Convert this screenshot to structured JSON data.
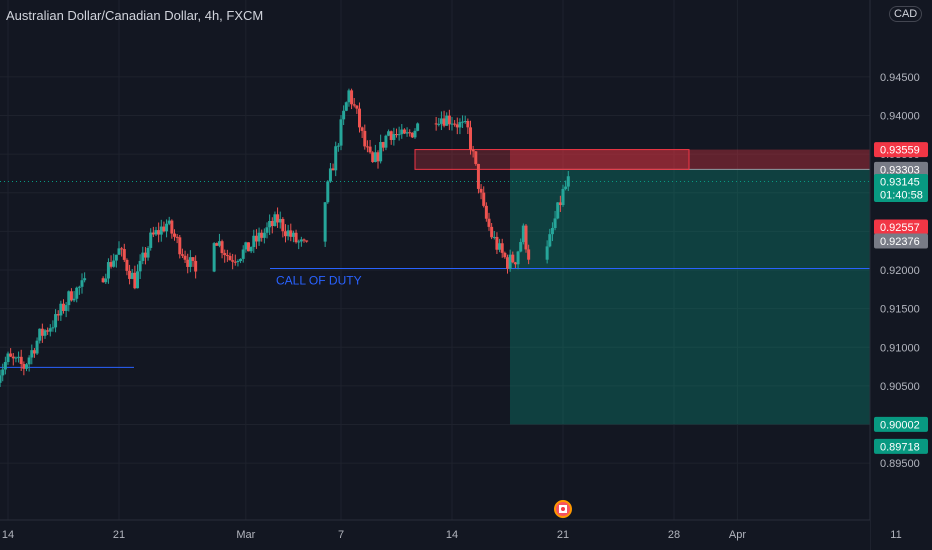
{
  "header": {
    "title": "Australian Dollar/Canadian Dollar, 4h, FXCM",
    "currency": "CAD"
  },
  "chart_data": {
    "type": "candlestick",
    "title": "Australian Dollar/Canadian Dollar, 4h, FXCM",
    "ylim": [
      0.8925,
      0.951
    ],
    "y_ticks": [
      "0.94500",
      "0.94000",
      "0.93500",
      "0.93000",
      "0.92500",
      "0.92000",
      "0.91500",
      "0.91000",
      "0.90500",
      "0.90000",
      "0.89500"
    ],
    "x_ticks": [
      "14",
      "21",
      "Mar",
      "7",
      "14",
      "21",
      "28",
      "Apr",
      "11"
    ],
    "close_path": [
      [
        "Feb 14 00:00",
        0.9085
      ],
      [
        "Feb 15 00:00",
        0.9075
      ],
      [
        "Feb 16 00:00",
        0.9115
      ],
      [
        "Feb 17 00:00",
        0.9135
      ],
      [
        "Feb 18 00:00",
        0.917
      ],
      [
        "Feb 20 00:00",
        0.9195
      ],
      [
        "Feb 21 00:00",
        0.9225
      ],
      [
        "Feb 22 00:00",
        0.9185
      ],
      [
        "Feb 23 00:00",
        0.924
      ],
      [
        "Feb 24 00:00",
        0.926
      ],
      [
        "Feb 25 00:00",
        0.9225
      ],
      [
        "Feb 26 00:00",
        0.919
      ],
      [
        "Feb 27 00:00",
        0.9245
      ],
      [
        "Feb 28 00:00",
        0.9215
      ],
      [
        "Mar 1 00:00",
        0.9225
      ],
      [
        "Mar 2 00:00",
        0.9245
      ],
      [
        "Mar 3 00:00",
        0.9265
      ],
      [
        "Mar 4 00:00",
        0.924
      ],
      [
        "Mar 5 00:00",
        0.9225
      ],
      [
        "Mar 6 00:00",
        0.929
      ],
      [
        "Mar 7 00:00",
        0.9385
      ],
      [
        "Mar 7 12:00",
        0.943
      ],
      [
        "Mar 8 00:00",
        0.94
      ],
      [
        "Mar 8 12:00",
        0.936
      ],
      [
        "Mar 9 00:00",
        0.9335
      ],
      [
        "Mar 10 00:00",
        0.938
      ],
      [
        "Mar 11 00:00",
        0.937
      ],
      [
        "Mar 12 00:00",
        0.939
      ],
      [
        "Mar 13 00:00",
        0.94
      ],
      [
        "Mar 14 00:00",
        0.9395
      ],
      [
        "Mar 15 00:00",
        0.938
      ],
      [
        "Mar 15 12:00",
        0.933
      ],
      [
        "Mar 16 00:00",
        0.9275
      ],
      [
        "Mar 16 12:00",
        0.9245
      ],
      [
        "Mar 17 00:00",
        0.9225
      ],
      [
        "Mar 17 12:00",
        0.921
      ],
      [
        "Mar 18 00:00",
        0.9215
      ],
      [
        "Mar 18 12:00",
        0.925
      ],
      [
        "Mar 19 00:00",
        0.9205
      ],
      [
        "Mar 19 08:00",
        0.918
      ],
      [
        "Mar 19 16:00",
        0.9195
      ],
      [
        "Mar 20 00:00",
        0.9225
      ],
      [
        "Mar 20 12:00",
        0.9265
      ],
      [
        "Mar 21 00:00",
        0.93
      ],
      [
        "Mar 21 08:00",
        0.93145
      ]
    ],
    "price_tags": [
      {
        "value": "0.93559",
        "color": "#f23645"
      },
      {
        "value": "0.93303",
        "color": "#787b86"
      },
      {
        "value": "0.93145",
        "color": "#089981",
        "sub": "01:40:58"
      },
      {
        "value": "0.92557",
        "color": "#f23645"
      },
      {
        "value": "0.92376",
        "color": "#787b86"
      },
      {
        "value": "0.90002",
        "color": "#089981"
      },
      {
        "value": "0.89718",
        "color": "#089981"
      }
    ],
    "annotation": "CALL OF DUTY",
    "levels": {
      "stop": 0.93559,
      "entry": 0.93303,
      "current": 0.93145,
      "target": 0.90002,
      "support": 0.9202,
      "old_support": 0.9074
    },
    "colors": {
      "up": "#26a69a",
      "down": "#ef5350",
      "line": "#2962ff",
      "profit": "#089981",
      "loss": "#f23645"
    }
  }
}
